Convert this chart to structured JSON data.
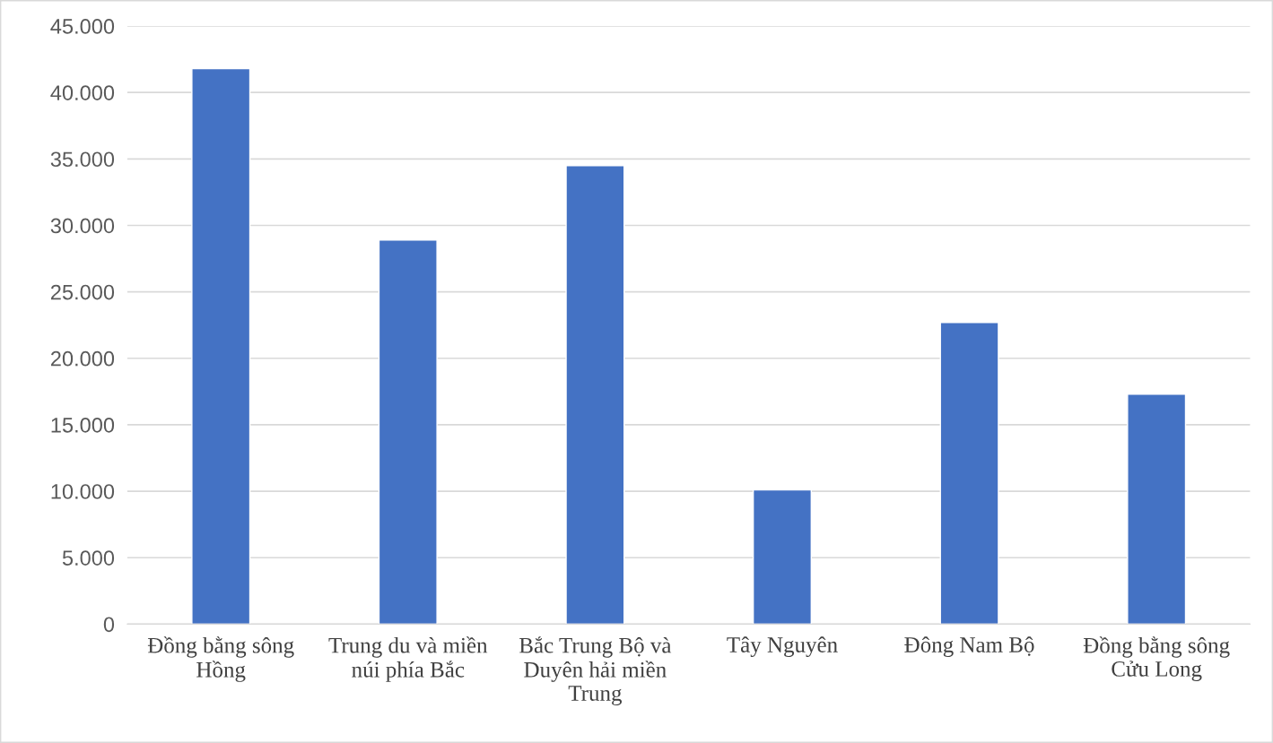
{
  "chart_data": {
    "type": "bar",
    "categories": [
      "Đồng bằng sông Hồng",
      "Trung du và miền núi phía Bắc",
      "Bắc Trung Bộ và Duyên hải miền Trung",
      "Tây Nguyên",
      "Đông Nam Bộ",
      "Đồng bằng sông Cửu Long"
    ],
    "values": [
      41800,
      28900,
      34500,
      10100,
      22700,
      17300
    ],
    "color": "#4472c4",
    "ylim": [
      0,
      45000
    ],
    "yticks": [
      {
        "value": 0,
        "label": "0"
      },
      {
        "value": 5000,
        "label": "5.000"
      },
      {
        "value": 10000,
        "label": "10.000"
      },
      {
        "value": 15000,
        "label": "15.000"
      },
      {
        "value": 20000,
        "label": "20.000"
      },
      {
        "value": 25000,
        "label": "25.000"
      },
      {
        "value": 30000,
        "label": "30.000"
      },
      {
        "value": 35000,
        "label": "35.000"
      },
      {
        "value": 40000,
        "label": "40.000"
      },
      {
        "value": 45000,
        "label": "45.000"
      }
    ],
    "grid": "y"
  }
}
